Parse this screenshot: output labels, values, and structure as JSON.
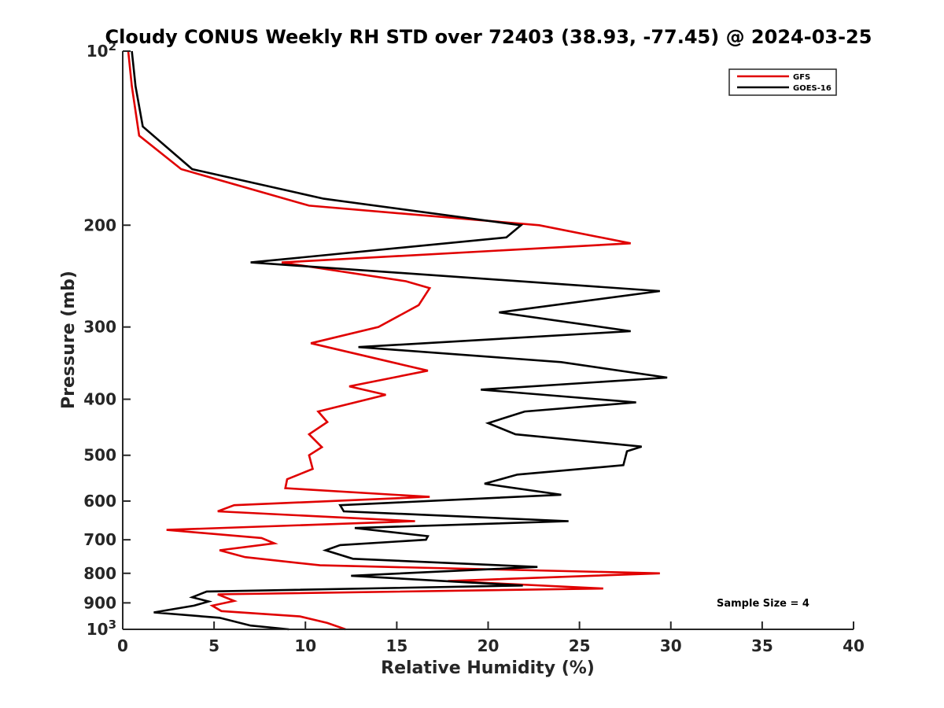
{
  "chart_data": {
    "type": "line",
    "title": "Cloudy CONUS Weekly RH STD over 72403 (38.93, -77.45) @ 2024-03-25",
    "xlabel": "Relative Humidity (%)",
    "ylabel": "Pressure (mb)",
    "xlim": [
      0,
      40
    ],
    "ylim": [
      100,
      1000
    ],
    "y_scale": "log",
    "y_reversed": true,
    "x_ticks": [
      0,
      5,
      10,
      15,
      20,
      25,
      30,
      35,
      40
    ],
    "y_ticks": [
      100,
      200,
      300,
      400,
      500,
      600,
      700,
      800,
      900,
      1000
    ],
    "y_tick_labels": {
      "100": {
        "base": "10",
        "exp": "2"
      },
      "200": {
        "base": "200",
        "exp": ""
      },
      "300": {
        "base": "300",
        "exp": ""
      },
      "400": {
        "base": "400",
        "exp": ""
      },
      "500": {
        "base": "500",
        "exp": ""
      },
      "600": {
        "base": "600",
        "exp": ""
      },
      "700": {
        "base": "700",
        "exp": ""
      },
      "800": {
        "base": "800",
        "exp": ""
      },
      "900": {
        "base": "900",
        "exp": ""
      },
      "1000": {
        "base": "10",
        "exp": "3"
      }
    },
    "grid": false,
    "legend_position": "top-right",
    "annotation": "Sample Size = 4",
    "series": [
      {
        "name": "GFS",
        "color": "#e00000",
        "x": [
          0.3,
          0.5,
          0.9,
          3.2,
          10.2,
          22.8,
          27.8,
          8.7,
          15.5,
          16.8,
          16.2,
          14.0,
          10.3,
          16.7,
          12.4,
          14.4,
          10.7,
          11.2,
          10.2,
          10.9,
          10.2,
          10.4,
          9.0,
          8.9,
          16.8,
          6.1,
          5.2,
          16.0,
          2.4,
          7.6,
          8.3,
          5.3,
          6.7,
          10.8,
          29.4,
          17.8,
          26.3,
          5.2,
          6.1,
          4.9,
          5.4,
          9.7,
          11.2,
          12.2
        ],
        "y": [
          100,
          115,
          140,
          160,
          185,
          200,
          215,
          232,
          250,
          257,
          275,
          300,
          320,
          357,
          380,
          393,
          420,
          438,
          460,
          484,
          500,
          528,
          550,
          570,
          590,
          610,
          625,
          650,
          673,
          695,
          710,
          730,
          750,
          775,
          800,
          825,
          850,
          870,
          893,
          910,
          930,
          950,
          975,
          1000
        ]
      },
      {
        "name": "GOES-16",
        "color": "#000000",
        "x": [
          0.5,
          0.7,
          1.1,
          3.8,
          11.0,
          21.8,
          21.0,
          7.0,
          29.4,
          20.6,
          27.8,
          12.9,
          24.0,
          29.8,
          19.6,
          28.1,
          22.0,
          20.0,
          21.5,
          28.4,
          27.6,
          27.4,
          21.6,
          19.8,
          24.0,
          11.9,
          12.1,
          24.4,
          12.7,
          16.7,
          16.6,
          11.9,
          11.1,
          12.6,
          22.7,
          12.5,
          21.9,
          4.6,
          3.8,
          4.7,
          3.9,
          1.7,
          5.3,
          7.0,
          9.1
        ],
        "y": [
          100,
          115,
          135,
          160,
          180,
          200,
          210,
          232,
          260,
          283,
          305,
          325,
          345,
          367,
          385,
          405,
          420,
          440,
          460,
          483,
          492,
          520,
          540,
          560,
          585,
          610,
          625,
          650,
          668,
          690,
          700,
          715,
          730,
          755,
          780,
          808,
          840,
          860,
          880,
          895,
          910,
          935,
          955,
          985,
          1000
        ]
      }
    ]
  }
}
